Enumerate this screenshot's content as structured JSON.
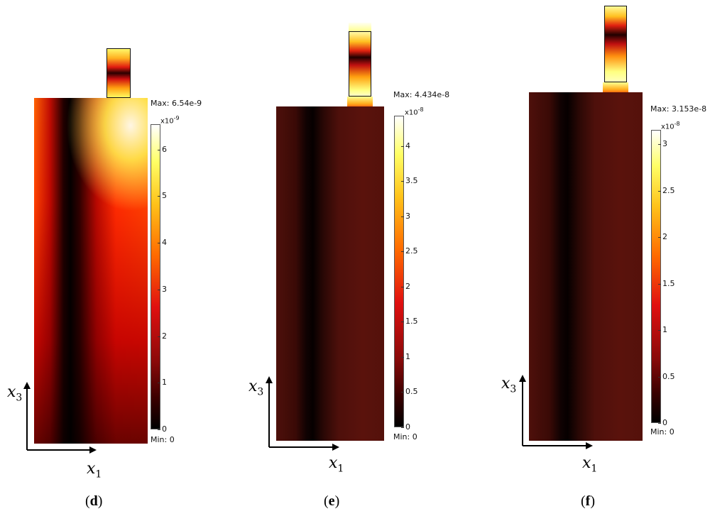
{
  "panels": [
    {
      "id": "d",
      "label": "d",
      "max_text": "Max: 6.54e-9",
      "min_text": "Min: 0",
      "exponent_text": "x10",
      "exponent_power": "-9",
      "ticks": [
        "6",
        "5",
        "4",
        "3",
        "2",
        "1",
        "0"
      ],
      "tick_values": [
        6,
        5,
        4,
        3,
        2,
        1,
        0
      ],
      "scale_max": 6.54,
      "x_label": "x",
      "x_sub": "1",
      "y_label": "x",
      "y_sub": "3"
    },
    {
      "id": "e",
      "label": "e",
      "max_text": "Max: 4.434e-8",
      "min_text": "Min: 0",
      "exponent_text": "x10",
      "exponent_power": "-8",
      "ticks": [
        "4",
        "3.5",
        "3",
        "2.5",
        "2",
        "1.5",
        "1",
        "0.5",
        "0"
      ],
      "tick_values": [
        4,
        3.5,
        3,
        2.5,
        2,
        1.5,
        1,
        0.5,
        0
      ],
      "scale_max": 4.434,
      "x_label": "x",
      "x_sub": "1",
      "y_label": "x",
      "y_sub": "3"
    },
    {
      "id": "f",
      "label": "f",
      "max_text": "Max: 3.153e-8",
      "min_text": "Min: 0",
      "exponent_text": "x10",
      "exponent_power": "-8",
      "ticks": [
        "3",
        "2.5",
        "2",
        "1.5",
        "1",
        "0.5",
        "0"
      ],
      "tick_values": [
        3,
        2.5,
        2,
        1.5,
        1,
        0.5,
        0
      ],
      "scale_max": 3.153,
      "x_label": "x",
      "x_sub": "1",
      "y_label": "x",
      "y_sub": "3"
    }
  ],
  "colors": {
    "colormap": [
      "#000000",
      "#3a0000",
      "#8a0a0a",
      "#e01010",
      "#ff6a00",
      "#ffc21a",
      "#ffff66",
      "#ffffff"
    ],
    "dark_field": "#4a0f0a"
  }
}
